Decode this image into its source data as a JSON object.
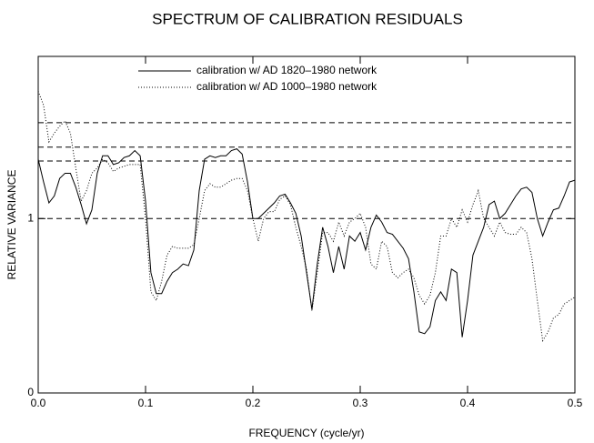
{
  "chart_data": {
    "type": "line",
    "title": "SPECTRUM OF CALIBRATION RESIDUALS",
    "x_label": "FREQUENCY (cycle/yr)",
    "y_label": "RELATIVE VARIANCE",
    "x": [
      0,
      0.005,
      0.01,
      0.015,
      0.02,
      0.025,
      0.03,
      0.035,
      0.04,
      0.045,
      0.05,
      0.055,
      0.06,
      0.065,
      0.07,
      0.075,
      0.08,
      0.085,
      0.09,
      0.095,
      0.1,
      0.105,
      0.11,
      0.115,
      0.12,
      0.125,
      0.13,
      0.135,
      0.14,
      0.145,
      0.15,
      0.155,
      0.16,
      0.165,
      0.17,
      0.175,
      0.18,
      0.185,
      0.19,
      0.195,
      0.2,
      0.205,
      0.21,
      0.215,
      0.22,
      0.225,
      0.23,
      0.235,
      0.24,
      0.245,
      0.25,
      0.255,
      0.26,
      0.265,
      0.27,
      0.275,
      0.28,
      0.285,
      0.29,
      0.295,
      0.3,
      0.305,
      0.31,
      0.315,
      0.32,
      0.325,
      0.33,
      0.335,
      0.34,
      0.345,
      0.35,
      0.355,
      0.36,
      0.365,
      0.37,
      0.375,
      0.38,
      0.385,
      0.39,
      0.395,
      0.4,
      0.405,
      0.41,
      0.415,
      0.42,
      0.425,
      0.43,
      0.435,
      0.44,
      0.445,
      0.45,
      0.455,
      0.46,
      0.465,
      0.47,
      0.475,
      0.48,
      0.485,
      0.49,
      0.495,
      0.5
    ],
    "series": [
      {
        "name": "calibration w/ AD 1820–1980 network",
        "color": "#000000",
        "dash": "solid",
        "values": [
          1.34,
          1.21,
          1.09,
          1.13,
          1.23,
          1.26,
          1.26,
          1.18,
          1.08,
          0.97,
          1.05,
          1.26,
          1.36,
          1.36,
          1.31,
          1.32,
          1.35,
          1.36,
          1.39,
          1.36,
          1.1,
          0.69,
          0.57,
          0.57,
          0.64,
          0.69,
          0.71,
          0.74,
          0.73,
          0.82,
          1.16,
          1.34,
          1.36,
          1.35,
          1.36,
          1.36,
          1.39,
          1.4,
          1.37,
          1.21,
          1.0,
          1.0,
          1.03,
          1.06,
          1.09,
          1.13,
          1.14,
          1.09,
          1.03,
          0.9,
          0.69,
          0.48,
          0.74,
          0.95,
          0.84,
          0.69,
          0.84,
          0.71,
          0.9,
          0.87,
          0.92,
          0.82,
          0.95,
          1.02,
          0.98,
          0.92,
          0.91,
          0.87,
          0.83,
          0.77,
          0.58,
          0.35,
          0.34,
          0.38,
          0.53,
          0.58,
          0.53,
          0.71,
          0.69,
          0.32,
          0.53,
          0.79,
          0.87,
          0.95,
          1.08,
          1.1,
          1.0,
          1.03,
          1.08,
          1.13,
          1.17,
          1.18,
          1.15,
          1.0,
          0.9,
          0.98,
          1.05,
          1.06,
          1.13,
          1.21,
          1.22
        ]
      },
      {
        "name": "calibration w/ AD 1000–1980 network",
        "color": "#000000",
        "dash": "dotted",
        "values": [
          1.73,
          1.65,
          1.44,
          1.49,
          1.53,
          1.56,
          1.49,
          1.29,
          1.1,
          1.16,
          1.26,
          1.29,
          1.34,
          1.32,
          1.27,
          1.29,
          1.3,
          1.31,
          1.31,
          1.31,
          1.0,
          0.58,
          0.53,
          0.64,
          0.79,
          0.84,
          0.83,
          0.83,
          0.83,
          0.85,
          1.0,
          1.16,
          1.2,
          1.18,
          1.18,
          1.2,
          1.22,
          1.23,
          1.23,
          1.16,
          1.0,
          0.87,
          1.0,
          1.04,
          1.04,
          1.11,
          1.13,
          1.08,
          0.95,
          0.84,
          0.71,
          0.47,
          0.69,
          0.92,
          0.92,
          0.87,
          0.98,
          0.9,
          0.98,
          1.0,
          1.03,
          0.95,
          0.74,
          0.71,
          0.87,
          0.84,
          0.69,
          0.66,
          0.69,
          0.71,
          0.66,
          0.56,
          0.51,
          0.56,
          0.69,
          0.9,
          0.9,
          1.0,
          0.95,
          1.05,
          0.98,
          1.08,
          1.16,
          1.0,
          0.95,
          0.9,
          0.98,
          0.92,
          0.91,
          0.91,
          0.95,
          0.92,
          0.77,
          0.53,
          0.3,
          0.35,
          0.43,
          0.45,
          0.51,
          0.53,
          0.55
        ]
      }
    ],
    "reference_lines": [
      1.55,
      1.41,
      1.33,
      1
    ],
    "xlim": [
      0,
      0.5
    ],
    "ylim": [
      0,
      1.93
    ],
    "xticks": [
      {
        "value": 0,
        "label": "0.0"
      },
      0.1,
      0.2,
      0.3,
      0.4,
      0.5
    ],
    "yticks": [
      0,
      1
    ],
    "legend": "top-center"
  }
}
